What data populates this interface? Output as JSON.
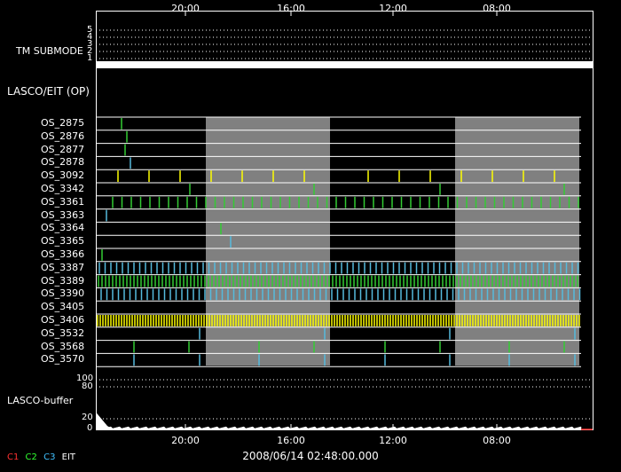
{
  "header": {
    "tm_submode_label": "TM SUBMODE",
    "lasco_eit_label": "LASCO/EIT (OP)",
    "lasco_buffer_label": "LASCO-buffer"
  },
  "time_axis": {
    "top_ticks": [
      "20:00",
      "16:00",
      "12:00",
      "08:00"
    ],
    "bottom_ticks": [
      "20:00",
      "16:00",
      "12:00",
      "08:00"
    ],
    "date_label": "2008/06/14 02:48:00.000"
  },
  "submode_ticks": [
    "5",
    "4",
    "3",
    "2",
    "1"
  ],
  "buffer_ticks": [
    "100",
    "80",
    "20",
    "0"
  ],
  "legend": [
    {
      "label": "C1",
      "color": "#ff3030"
    },
    {
      "label": "C2",
      "color": "#30ff30"
    },
    {
      "label": "C3",
      "color": "#40c0ff"
    },
    {
      "label": "EIT",
      "color": "#ffffff"
    }
  ],
  "colors": {
    "green": "#33cc33",
    "cyan": "#55bbdd",
    "yellow": "#ffff00",
    "shade": "#808080"
  },
  "chart_data": {
    "type": "timeline",
    "rows": [
      "OS_2875",
      "OS_2876",
      "OS_2877",
      "OS_2878",
      "OS_3092",
      "OS_3342",
      "OS_3361",
      "OS_3363",
      "OS_3364",
      "OS_3365",
      "OS_3366",
      "OS_3387",
      "OS_3389",
      "OS_3390",
      "OS_3405",
      "OS_3406",
      "OS_3532",
      "OS_3568",
      "OS_3570"
    ]
  }
}
